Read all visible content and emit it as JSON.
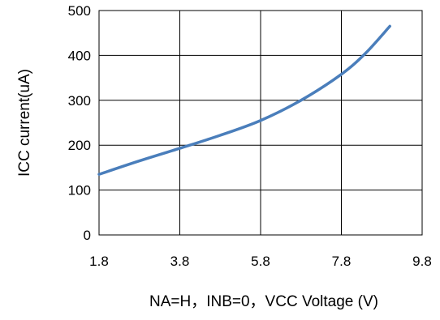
{
  "chart_data": {
    "type": "line",
    "xlabel": "NA=H，INB=0，VCC Voltage (V)",
    "ylabel": "ICC current(uA)",
    "xlim": [
      1.8,
      9.8
    ],
    "ylim": [
      0,
      500
    ],
    "x_ticks": [
      "1.8",
      "3.8",
      "5.8",
      "7.8",
      "9.8"
    ],
    "y_ticks": [
      "0",
      "100",
      "200",
      "300",
      "400",
      "500"
    ],
    "grid": true,
    "legend": "none",
    "series": [
      {
        "color": "#4a7ebb",
        "x": [
          1.8,
          2.8,
          3.8,
          4.8,
          5.8,
          6.8,
          7.8,
          8.4,
          9.0
        ],
        "y": [
          135,
          165,
          193,
          222,
          255,
          300,
          358,
          405,
          465
        ]
      }
    ]
  }
}
